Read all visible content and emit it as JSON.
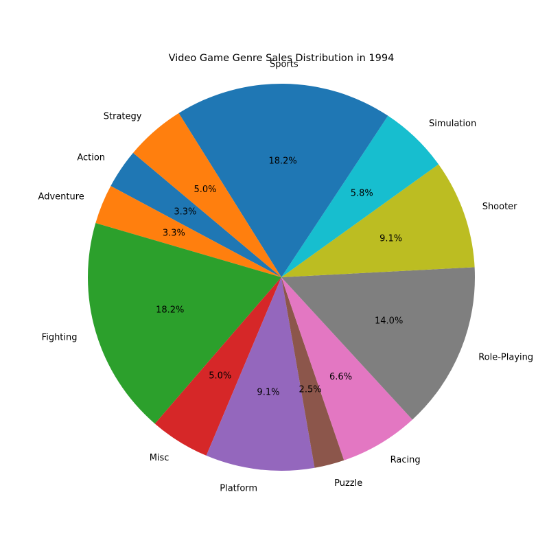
{
  "chart_data": {
    "type": "pie",
    "title": "Video Game Genre Sales Distribution in 1994",
    "slices": [
      {
        "label": "Action",
        "percent": 3.3,
        "pct_label": "3.3%",
        "color": "#1f77b4"
      },
      {
        "label": "Adventure",
        "percent": 3.3,
        "pct_label": "3.3%",
        "color": "#ff7f0e"
      },
      {
        "label": "Fighting",
        "percent": 18.2,
        "pct_label": "18.2%",
        "color": "#2ca02c"
      },
      {
        "label": "Misc",
        "percent": 5.0,
        "pct_label": "5.0%",
        "color": "#d62728"
      },
      {
        "label": "Platform",
        "percent": 9.1,
        "pct_label": "9.1%",
        "color": "#9467bd"
      },
      {
        "label": "Puzzle",
        "percent": 2.5,
        "pct_label": "2.5%",
        "color": "#8c564b"
      },
      {
        "label": "Racing",
        "percent": 6.6,
        "pct_label": "6.6%",
        "color": "#e377c2"
      },
      {
        "label": "Role-Playing",
        "percent": 14.0,
        "pct_label": "14.0%",
        "color": "#7f7f7f"
      },
      {
        "label": "Shooter",
        "percent": 9.1,
        "pct_label": "9.1%",
        "color": "#bcbd22"
      },
      {
        "label": "Simulation",
        "percent": 5.8,
        "pct_label": "5.8%",
        "color": "#17becf"
      },
      {
        "label": "Sports",
        "percent": 18.2,
        "pct_label": "18.2%",
        "color": "#1f77b4"
      },
      {
        "label": "Strategy",
        "percent": 5.0,
        "pct_label": "5.0%",
        "color": "#ff7f0e"
      }
    ]
  }
}
